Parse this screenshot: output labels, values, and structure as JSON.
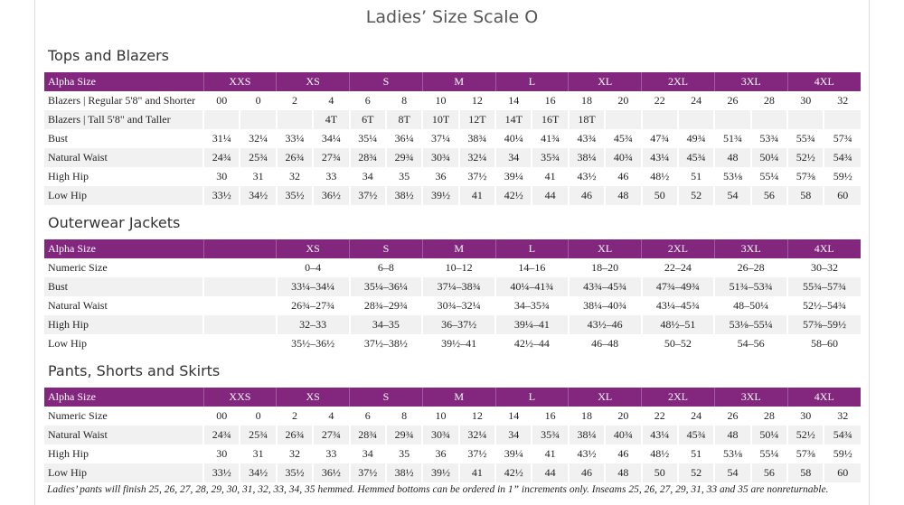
{
  "title": "Ladies’ Size Scale O",
  "sections": [
    {
      "heading": "Tops and Blazers",
      "header": [
        "Alpha Size",
        "XXS",
        "XS",
        "S",
        "M",
        "L",
        "XL",
        "2XL",
        "3XL",
        "4XL"
      ],
      "rows": [
        {
          "label": "Blazers | Regular 5'8\" and Shorter",
          "cells": [
            "00",
            "0",
            "2",
            "4",
            "6",
            "8",
            "10",
            "12",
            "14",
            "16",
            "18",
            "20",
            "22",
            "24",
            "26",
            "28",
            "30",
            "32"
          ]
        },
        {
          "label": "Blazers  |  Tall 5'8\" and Taller",
          "cells": [
            null,
            null,
            null,
            "4T",
            "6T",
            "8T",
            "10T",
            "12T",
            "14T",
            "16T",
            "18T",
            null,
            null,
            null,
            null,
            null,
            null,
            null
          ]
        },
        {
          "label": "Bust",
          "cells": [
            "31¼",
            "32¼",
            "33¼",
            "34¼",
            "35¼",
            "36¼",
            "37¼",
            "38¾",
            "40¼",
            "41¾",
            "43¾",
            "45¾",
            "47¾",
            "49¾",
            "51¾",
            "53¾",
            "55¾",
            "57¾"
          ]
        },
        {
          "label": "Natural Waist",
          "cells": [
            "24¾",
            "25¾",
            "26¾",
            "27¾",
            "28¾",
            "29¾",
            "30¾",
            "32¼",
            "34",
            "35¾",
            "38¼",
            "40¾",
            "43¼",
            "45¾",
            "48",
            "50¼",
            "52½",
            "54¾"
          ]
        },
        {
          "label": "High Hip",
          "cells": [
            "30",
            "31",
            "32",
            "33",
            "34",
            "35",
            "36",
            "37½",
            "39¼",
            "41",
            "43½",
            "46",
            "48½",
            "51",
            "53⅛",
            "55¼",
            "57⅜",
            "59½"
          ]
        },
        {
          "label": "Low Hip",
          "cells": [
            "33½",
            "34½",
            "35½",
            "36½",
            "37½",
            "38½",
            "39½",
            "41",
            "42½",
            "44",
            "46",
            "48",
            "50",
            "52",
            "54",
            "56",
            "58",
            "60"
          ]
        }
      ]
    },
    {
      "heading": "Outerwear Jackets",
      "header": [
        "Alpha Size",
        "XS",
        "S",
        "M",
        "L",
        "XL",
        "2XL",
        "3XL",
        "4XL"
      ],
      "rows": [
        {
          "label": "Numeric Size",
          "cells": [
            "0–4",
            "6–8",
            "10–12",
            "14–16",
            "18–20",
            "22–24",
            "26–28",
            "30–32"
          ]
        },
        {
          "label": "Bust",
          "cells": [
            "33¼–34¼",
            "35¼–36¼",
            "37¼–38¾",
            "40¼–41¾",
            "43¾–45¾",
            "47¾–49¾",
            "51¾–53¾",
            "55¾–57¾"
          ]
        },
        {
          "label": "Natural Waist",
          "cells": [
            "26¾–27¾",
            "28¾–29¾",
            "30¾–32¼",
            "34–35¾",
            "38¼–40¾",
            "43¼–45¾",
            "48–50¼",
            "52½–54¾"
          ]
        },
        {
          "label": "High Hip",
          "cells": [
            "32–33",
            "34–35",
            "36–37½",
            "39¼–41",
            "43½–46",
            "48½–51",
            "53⅛–55¼",
            "57⅜–59½"
          ]
        },
        {
          "label": "Low Hip",
          "cells": [
            "35½–36½",
            "37½–38½",
            "39½–41",
            "42½–44",
            "46–48",
            "50–52",
            "54–56",
            "58–60"
          ]
        }
      ]
    },
    {
      "heading": "Pants, Shorts and Skirts",
      "header": [
        "Alpha Size",
        "XXS",
        "XS",
        "S",
        "M",
        "L",
        "XL",
        "2XL",
        "3XL",
        "4XL"
      ],
      "rows": [
        {
          "label": "Numeric Size",
          "cells": [
            "00",
            "0",
            "2",
            "4",
            "6",
            "8",
            "10",
            "12",
            "14",
            "16",
            "18",
            "20",
            "22",
            "24",
            "26",
            "28",
            "30",
            "32"
          ]
        },
        {
          "label": "Natural Waist",
          "cells": [
            "24¾",
            "25¾",
            "26¾",
            "27¾",
            "28¾",
            "29¾",
            "30¾",
            "32¼",
            "34",
            "35¾",
            "38¼",
            "40¾",
            "43¼",
            "45¾",
            "48",
            "50¼",
            "52½",
            "54¾"
          ]
        },
        {
          "label": "High Hip",
          "cells": [
            "30",
            "31",
            "32",
            "33",
            "34",
            "35",
            "36",
            "37½",
            "39¼",
            "41",
            "43½",
            "46",
            "48½",
            "51",
            "53⅛",
            "55¼",
            "57⅜",
            "59½"
          ]
        },
        {
          "label": "Low Hip",
          "cells": [
            "33½",
            "34½",
            "35½",
            "36½",
            "37½",
            "38½",
            "39½",
            "41",
            "42½",
            "44",
            "46",
            "48",
            "50",
            "52",
            "54",
            "56",
            "58",
            "60"
          ]
        }
      ]
    }
  ],
  "footnote": "Ladies’ pants will finish 25, 26, 27, 28, 29, 30, 31, 32, 33, 34, 35 hemmed. Hemmed bottoms can be ordered in 1” increments only. Inseams 25, 26, 27, 29, 31, 33 and 35 are nonreturnable."
}
